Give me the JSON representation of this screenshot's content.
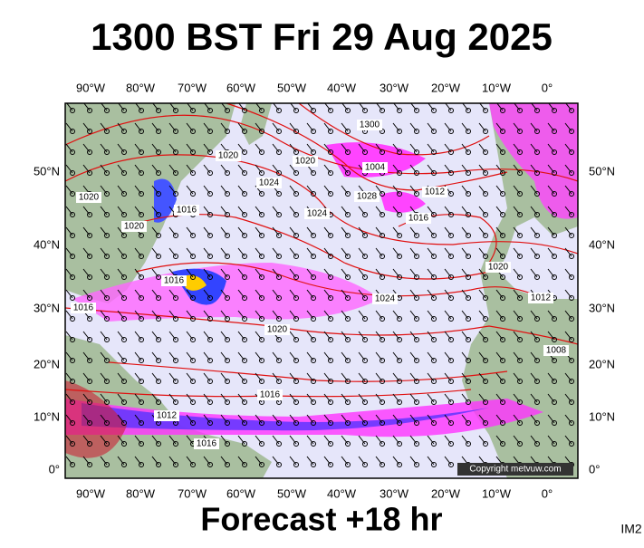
{
  "header": {
    "title": "1300 BST Fri 29 Aug 2025"
  },
  "map": {
    "lon_labels": [
      "90°W",
      "80°W",
      "70°W",
      "60°W",
      "50°W",
      "40°W",
      "30°W",
      "20°W",
      "10°W",
      "0°"
    ],
    "lat_labels": [
      "50°N",
      "40°N",
      "30°N",
      "20°N",
      "10°N",
      "0°"
    ],
    "isobar_labels": [
      "1300",
      "1020",
      "1020",
      "1024",
      "1004",
      "1028",
      "1012",
      "1016",
      "1024",
      "1020",
      "1016",
      "1020",
      "1016",
      "1016",
      "1020",
      "1024",
      "1020",
      "1012",
      "1008",
      "1016",
      "1012",
      "1016"
    ],
    "copyright": "Copyright metvuw.com"
  },
  "footer": {
    "forecast": "Forecast +18 hr",
    "code": "IM2"
  }
}
